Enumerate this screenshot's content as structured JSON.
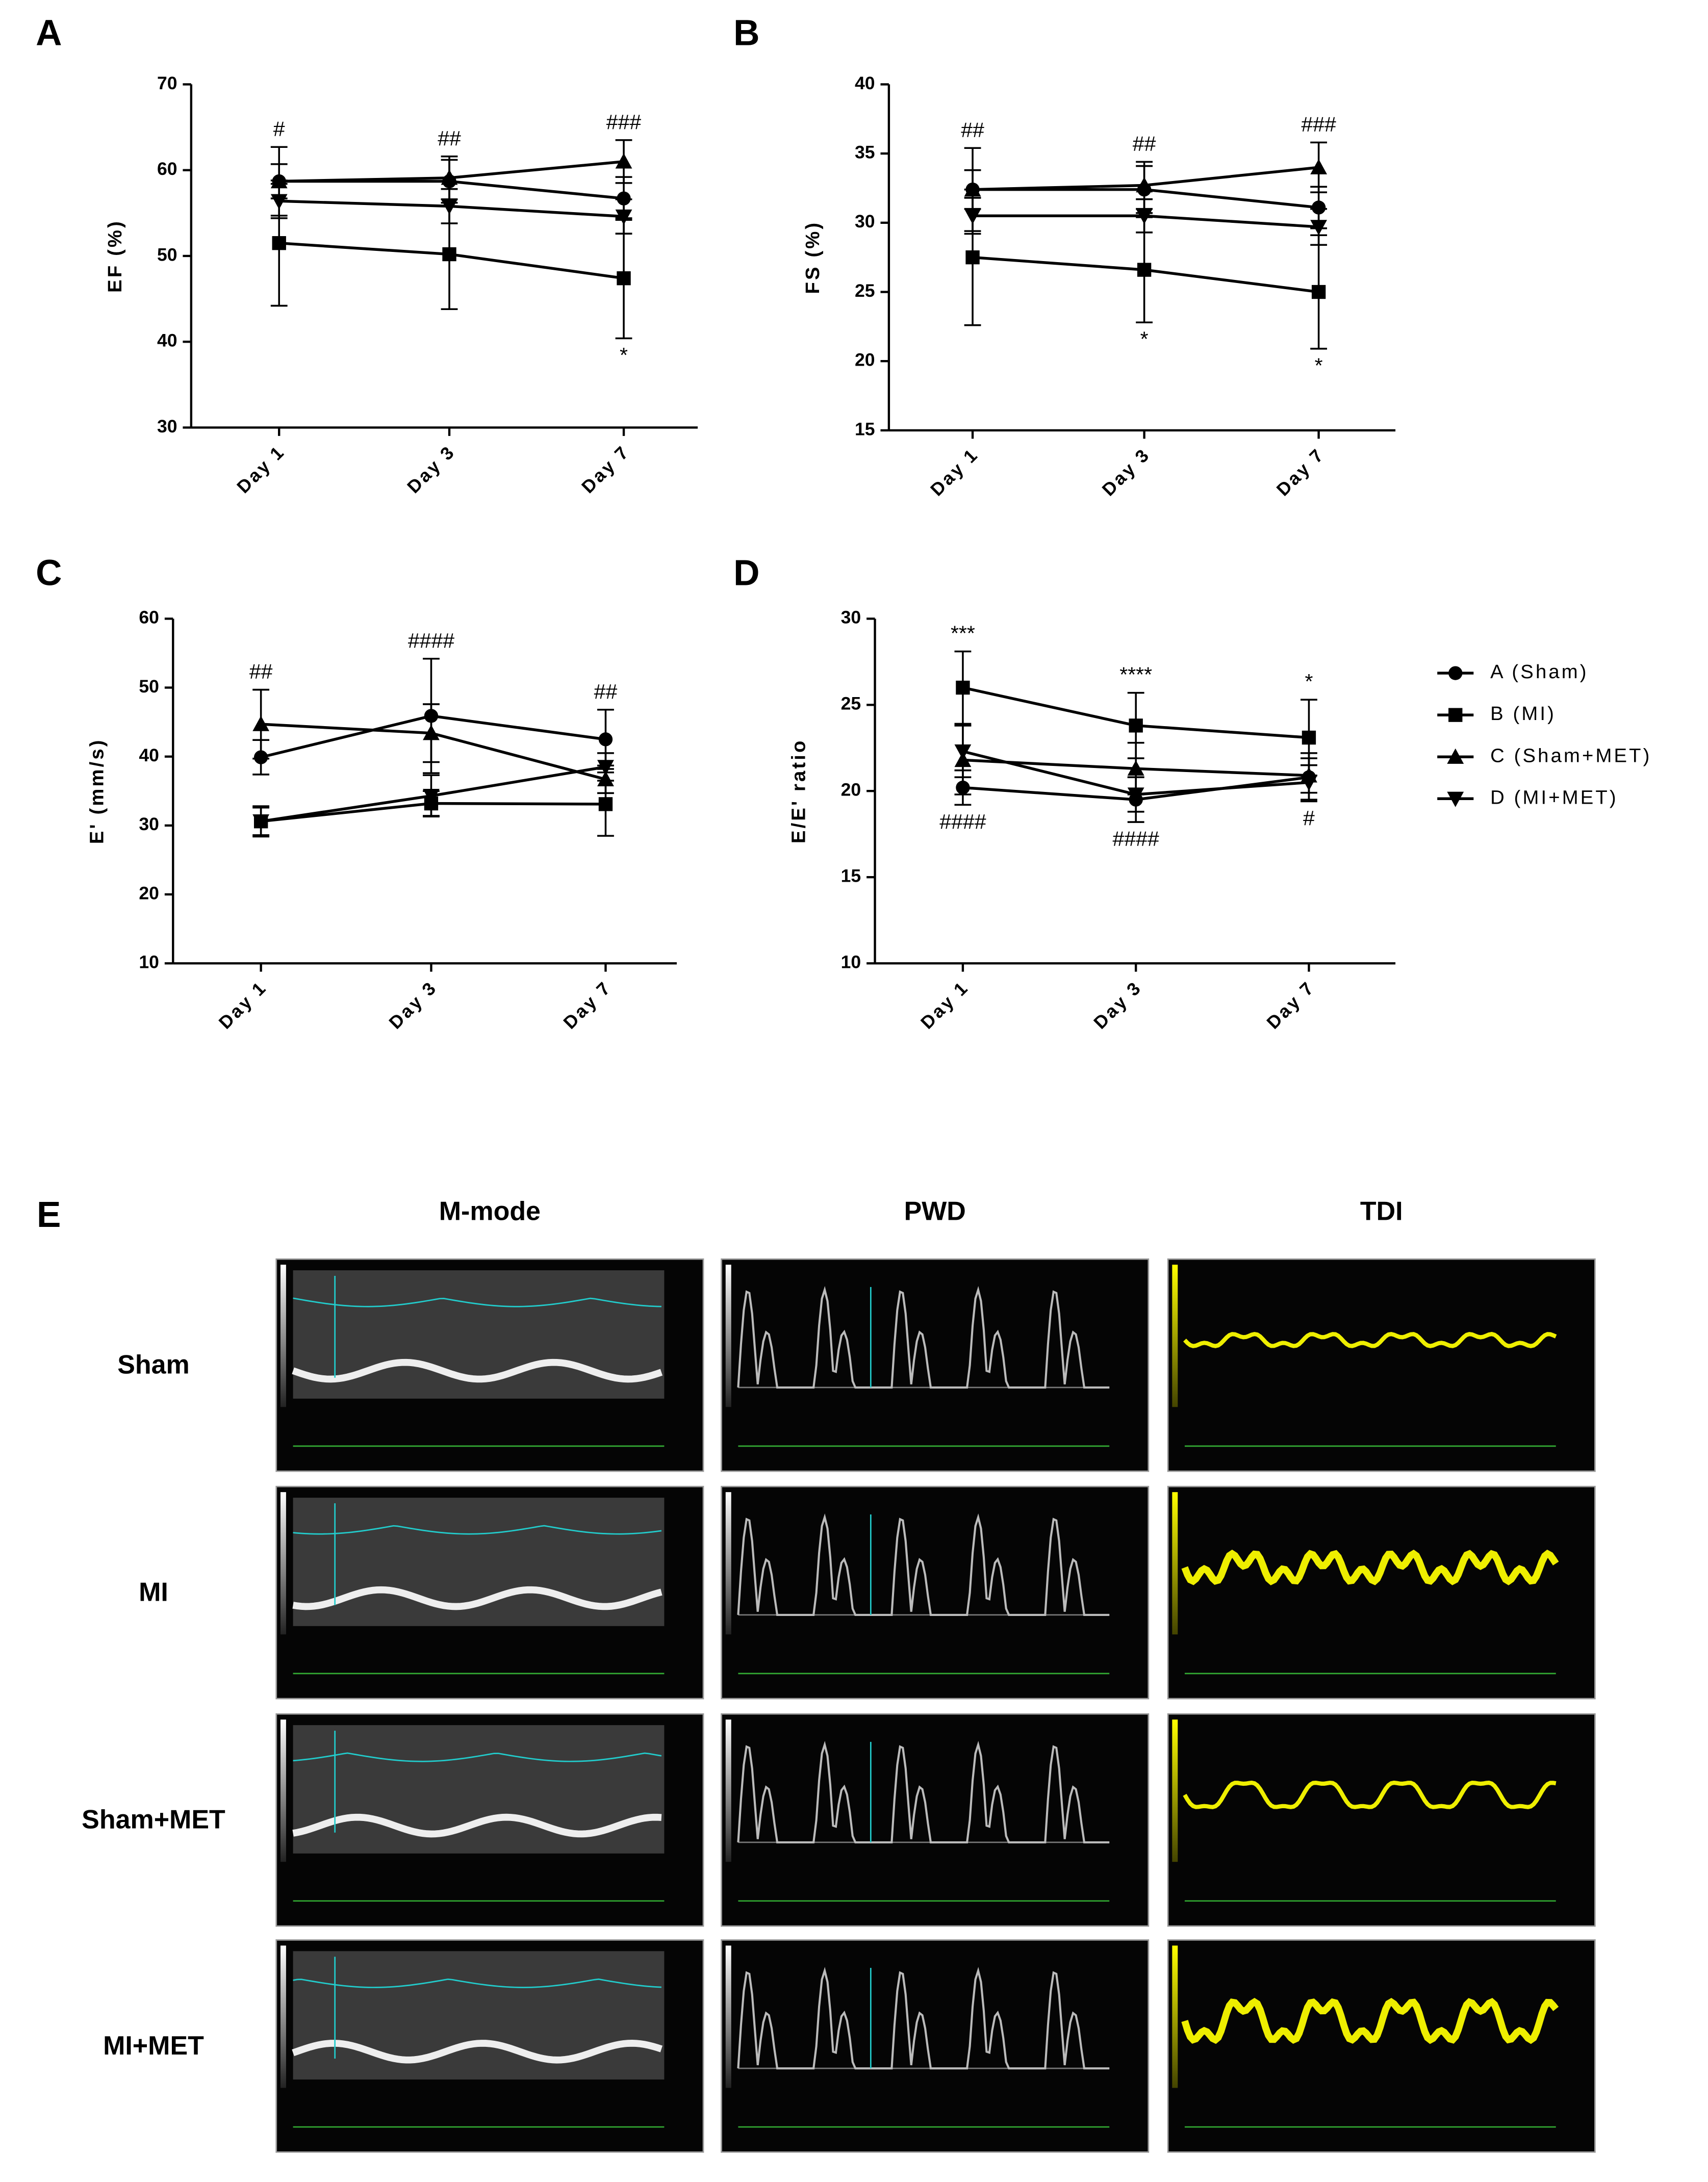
{
  "chart_data": [
    {
      "type": "line",
      "panel": "A",
      "ylabel": "EF (%)",
      "categories": [
        "Day 1",
        "Day 3",
        "Day 7"
      ],
      "ylim": [
        30,
        70
      ],
      "yticks": [
        30,
        40,
        50,
        60,
        70
      ],
      "series": [
        {
          "marker": "circle",
          "values": [
            58.7,
            58.7,
            56.7
          ],
          "errors": [
            2,
            2.5,
            2.5
          ]
        },
        {
          "marker": "square",
          "values": [
            51.5,
            50.2,
            47.4
          ],
          "errors": [
            7.3,
            6.4,
            7
          ]
        },
        {
          "marker": "triangle",
          "values": [
            58.7,
            59.1,
            61.0
          ],
          "errors": [
            4,
            2.5,
            2.5
          ]
        },
        {
          "marker": "triangle-down",
          "values": [
            56.4,
            55.8,
            54.6
          ],
          "errors": [
            2,
            2,
            2
          ]
        }
      ],
      "annotations": [
        {
          "text": "#",
          "category": "Day 1",
          "side": "above"
        },
        {
          "text": "##",
          "category": "Day 3",
          "side": "above"
        },
        {
          "text": "###",
          "category": "Day 7",
          "side": "above"
        },
        {
          "text": "*",
          "category": "Day 7",
          "side": "below"
        }
      ]
    },
    {
      "type": "line",
      "panel": "B",
      "ylabel": "FS (%)",
      "categories": [
        "Day 1",
        "Day 3",
        "Day 7"
      ],
      "ylim": [
        15,
        40
      ],
      "yticks": [
        15,
        20,
        25,
        30,
        35,
        40
      ],
      "series": [
        {
          "marker": "circle",
          "values": [
            32.4,
            32.4,
            31.1
          ],
          "errors": [
            1.4,
            1.7,
            1.5
          ]
        },
        {
          "marker": "square",
          "values": [
            27.5,
            26.6,
            25.0
          ],
          "errors": [
            4.9,
            3.8,
            4.1
          ]
        },
        {
          "marker": "triangle",
          "values": [
            32.4,
            32.7,
            34.0
          ],
          "errors": [
            3,
            1.7,
            1.8
          ]
        },
        {
          "marker": "triangle-down",
          "values": [
            30.5,
            30.5,
            29.7
          ],
          "errors": [
            1.3,
            1.2,
            1.3
          ]
        }
      ],
      "annotations": [
        {
          "text": "##",
          "category": "Day 1",
          "side": "above"
        },
        {
          "text": "##",
          "category": "Day 3",
          "side": "above"
        },
        {
          "text": "###",
          "category": "Day 7",
          "side": "above"
        },
        {
          "text": "*",
          "category": "Day 3",
          "side": "below"
        },
        {
          "text": "*",
          "category": "Day 7",
          "side": "below"
        }
      ]
    },
    {
      "type": "line",
      "panel": "C",
      "ylabel": "E' (mm/s)",
      "categories": [
        "Day 1",
        "Day 3",
        "Day 7"
      ],
      "ylim": [
        10,
        60
      ],
      "yticks": [
        10,
        20,
        30,
        40,
        50,
        60
      ],
      "series": [
        {
          "marker": "circle",
          "values": [
            39.9,
            45.9,
            42.5
          ],
          "errors": [
            2.5,
            8.3,
            4.3
          ]
        },
        {
          "marker": "square",
          "values": [
            30.6,
            33.2,
            33.1
          ],
          "errors": [
            2.2,
            1.8,
            4.6
          ]
        },
        {
          "marker": "triangle",
          "values": [
            44.7,
            43.4,
            36.7
          ],
          "errors": [
            5,
            4.2,
            2
          ]
        },
        {
          "marker": "triangle-down",
          "values": [
            30.6,
            34.3,
            38.5
          ],
          "errors": [
            2,
            3,
            2
          ]
        }
      ],
      "annotations": [
        {
          "text": "##",
          "category": "Day 1",
          "side": "above"
        },
        {
          "text": "####",
          "category": "Day 3",
          "side": "above"
        },
        {
          "text": "##",
          "category": "Day 7",
          "side": "above"
        }
      ]
    },
    {
      "type": "line",
      "panel": "D",
      "ylabel": "E/E' ratio",
      "categories": [
        "Day 1",
        "Day 3",
        "Day 7"
      ],
      "ylim": [
        10,
        30
      ],
      "yticks": [
        10,
        15,
        20,
        25,
        30
      ],
      "legend": "right",
      "series": [
        {
          "name": "A (Sham)",
          "marker": "circle",
          "values": [
            20.2,
            19.5,
            20.8
          ],
          "errors": [
            1,
            1.3,
            1.4
          ]
        },
        {
          "name": "B (MI)",
          "marker": "square",
          "values": [
            26.0,
            23.8,
            23.1
          ],
          "errors": [
            2.1,
            1.9,
            2.2
          ]
        },
        {
          "name": "C (Sham+MET)",
          "marker": "triangle",
          "values": [
            21.8,
            21.3,
            20.9
          ],
          "errors": [
            2,
            1.5,
            1
          ]
        },
        {
          "name": "D (MI+MET)",
          "marker": "triangle-down",
          "values": [
            22.3,
            19.8,
            20.5
          ],
          "errors": [
            1.5,
            1,
            1
          ]
        }
      ],
      "annotations": [
        {
          "text": "***",
          "category": "Day 1",
          "side": "above"
        },
        {
          "text": "****",
          "category": "Day 3",
          "side": "above"
        },
        {
          "text": "*",
          "category": "Day 7",
          "side": "above"
        },
        {
          "text": "####",
          "category": "Day 1",
          "side": "below"
        },
        {
          "text": "####",
          "category": "Day 3",
          "side": "below"
        },
        {
          "text": "#",
          "category": "Day 7",
          "side": "below"
        }
      ]
    }
  ],
  "figure_e": {
    "panel": "E",
    "columns": [
      "M-mode",
      "PWD",
      "TDI"
    ],
    "rows": [
      "Sham",
      "MI",
      "Sham+MET",
      "MI+MET"
    ]
  }
}
